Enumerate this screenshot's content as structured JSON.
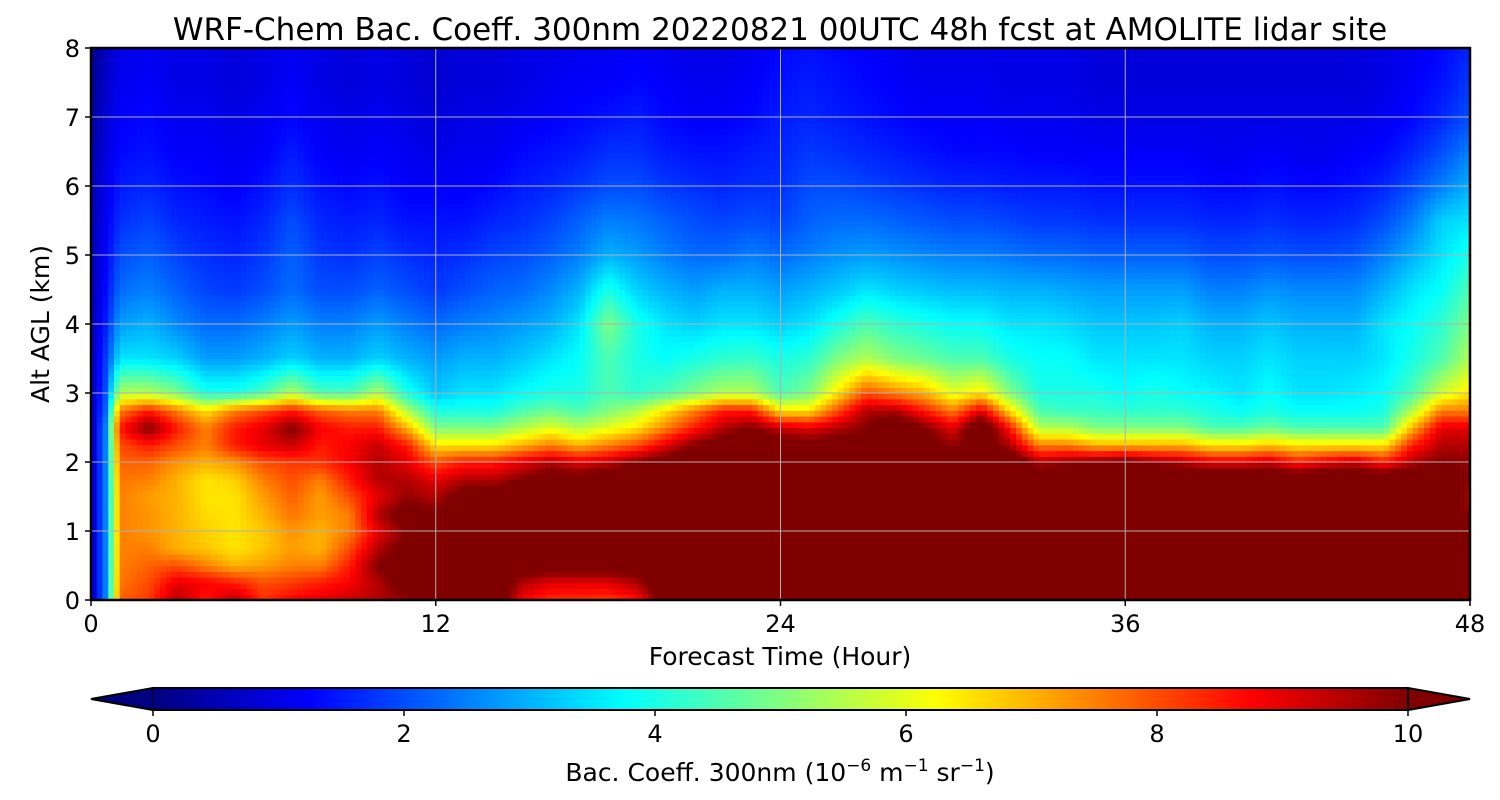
{
  "chart_data": {
    "type": "heatmap",
    "title": "WRF-Chem Bac. Coeff. 300nm  20220821 00UTC 48h fcst at AMOLITE lidar site",
    "xlabel": "Forecast Time (Hour)",
    "ylabel": "Alt AGL (km)",
    "xlim": [
      0,
      48
    ],
    "ylim": [
      0,
      8
    ],
    "x_ticks": [
      "0",
      "12",
      "24",
      "36",
      "48"
    ],
    "y_ticks": [
      "0",
      "1",
      "2",
      "3",
      "4",
      "5",
      "6",
      "7",
      "8"
    ],
    "grid": true,
    "colormap": "jet",
    "colorbar": {
      "orientation": "horizontal",
      "extend": "both",
      "range": [
        0,
        10
      ],
      "ticks": [
        "0",
        "2",
        "4",
        "6",
        "8",
        "10"
      ],
      "label": {
        "prefix": "Bac. Coeff. 300nm  (10",
        "exp1": "−6",
        "mid1": " m",
        "exp2": "−1",
        "mid2": " sr",
        "exp3": "−1",
        "suffix": ")"
      }
    },
    "x": [
      0,
      0.5,
      1,
      2,
      3,
      4,
      5,
      6,
      7,
      8,
      9,
      10,
      11,
      12,
      13,
      14,
      15,
      16,
      17,
      18,
      19,
      20,
      21,
      22,
      23,
      24,
      25,
      26,
      27,
      28,
      29,
      30,
      31,
      32,
      33,
      34,
      35,
      36,
      37,
      38,
      39,
      40,
      41,
      42,
      43,
      44,
      45,
      46,
      47,
      48
    ],
    "y": [
      0,
      0.25,
      0.5,
      0.75,
      1,
      1.25,
      1.5,
      1.75,
      2,
      2.25,
      2.5,
      2.75,
      3,
      3.5,
      4,
      4.5,
      5,
      5.5,
      6,
      6.5,
      7,
      7.5,
      8
    ],
    "z": [
      [
        0.5,
        2.5,
        7.8,
        8.2,
        9.5,
        8.5,
        9.5,
        8.3,
        8.8,
        9,
        9.3,
        9.5,
        9.8,
        10.5,
        11,
        11,
        8.8,
        8.3,
        8.3,
        8.2,
        8.6,
        10.5,
        11,
        11,
        11,
        11,
        11,
        11,
        11,
        11,
        11,
        11,
        11,
        11,
        11,
        11,
        11,
        11,
        11,
        11,
        11,
        11,
        11,
        11,
        11,
        11,
        11,
        11,
        11,
        11
      ],
      [
        0.5,
        2.5,
        7.6,
        8,
        9,
        8.8,
        8.5,
        8,
        8.2,
        8.5,
        8.8,
        9.5,
        10.5,
        10.5,
        11,
        11,
        9.5,
        9,
        9,
        9,
        9.5,
        11,
        11,
        11,
        11,
        11,
        11,
        11,
        11,
        11,
        11,
        11,
        11,
        11,
        11,
        11,
        11,
        11,
        11,
        11,
        11,
        11,
        11,
        11,
        11,
        11,
        11,
        11,
        11,
        11
      ],
      [
        0.5,
        2.5,
        7.5,
        7.8,
        8,
        7.5,
        7,
        7.2,
        7.5,
        7.5,
        8.5,
        10,
        10.5,
        10.5,
        11,
        11,
        10.5,
        10.5,
        10.5,
        10.5,
        10.5,
        11,
        11,
        11,
        11,
        11,
        11,
        11,
        11,
        11,
        11,
        11,
        11,
        11,
        11,
        11,
        11,
        11,
        11,
        11,
        11,
        11,
        11,
        11,
        11,
        11,
        11,
        11,
        11,
        11
      ],
      [
        0.5,
        2.5,
        7.5,
        7.5,
        7,
        6.8,
        6.5,
        6.8,
        7.2,
        7,
        8,
        9.5,
        10.3,
        10.5,
        11,
        11,
        11,
        11,
        11,
        11,
        11,
        11,
        11,
        11,
        11,
        11,
        11,
        11,
        11,
        11,
        11,
        11,
        11,
        11,
        11,
        11,
        11,
        11,
        11,
        11,
        11,
        11,
        11,
        11,
        11,
        11,
        11,
        11,
        11,
        11
      ],
      [
        0.5,
        2.5,
        7.5,
        7.3,
        7,
        6.7,
        6.5,
        6.8,
        7.3,
        7,
        7.5,
        9,
        10,
        10.5,
        11,
        11,
        11,
        11,
        11,
        11,
        11,
        11,
        11,
        11,
        11,
        11,
        11,
        11,
        11,
        11,
        11,
        11,
        11,
        11,
        11,
        11,
        11,
        11,
        11,
        11,
        11,
        11,
        11,
        11,
        11,
        11,
        11,
        11,
        11,
        11
      ],
      [
        0.5,
        2.5,
        7.5,
        7.3,
        7,
        6.6,
        6.5,
        7,
        7.6,
        7.2,
        7.5,
        9.5,
        10.5,
        10,
        11,
        11,
        11,
        11,
        11,
        11,
        11,
        11,
        11,
        11,
        11,
        11,
        11,
        11,
        11,
        11,
        11,
        11,
        11,
        11,
        11,
        11,
        11,
        11,
        11,
        11,
        11,
        11,
        11,
        11,
        11,
        11,
        11,
        11,
        11,
        9.8
      ],
      [
        0.5,
        2.5,
        7.5,
        7.2,
        7,
        6.5,
        6.5,
        7.2,
        7.8,
        7.2,
        8,
        9,
        9.8,
        9.5,
        10.5,
        10.5,
        11,
        11,
        11,
        11,
        11,
        11,
        11,
        11,
        11,
        11,
        11,
        11,
        11,
        11,
        11,
        11,
        11,
        11,
        11,
        11,
        11,
        11,
        11,
        11,
        11,
        11,
        11,
        11,
        11,
        11,
        11,
        11,
        11,
        9.5
      ],
      [
        0.5,
        2.5,
        7.6,
        7.5,
        7,
        6.5,
        6.7,
        7.5,
        8,
        7.5,
        8.5,
        9.5,
        9.5,
        9,
        9.5,
        9.5,
        10,
        10.5,
        10.5,
        11,
        11,
        11,
        11,
        11,
        11,
        11,
        11,
        11,
        11,
        11,
        11,
        11,
        11,
        11,
        11,
        11,
        11,
        11,
        11,
        11,
        11,
        11,
        11,
        11,
        11,
        11,
        11,
        11,
        11,
        9.8
      ],
      [
        0.5,
        2.5,
        7.8,
        7.8,
        7.3,
        7,
        7.3,
        8,
        8.2,
        8.3,
        8.8,
        9.5,
        9,
        8,
        8.5,
        8.5,
        9,
        9.5,
        9,
        9.3,
        10,
        10.5,
        11,
        11,
        11,
        11,
        11,
        11,
        10.5,
        11,
        11,
        10.5,
        11,
        11,
        9.5,
        9.8,
        10,
        10.3,
        9.8,
        9.5,
        9,
        9,
        9.3,
        8.5,
        9,
        9.3,
        8.5,
        9.5,
        10,
        9.8
      ],
      [
        0.5,
        2.5,
        8,
        8.5,
        8,
        7.5,
        8.5,
        9,
        9.3,
        8.5,
        8.8,
        9.3,
        8.5,
        6.5,
        6.5,
        6.5,
        7,
        7.5,
        7,
        7.5,
        8,
        9,
        10,
        10.5,
        11,
        10.5,
        10.3,
        10.5,
        10,
        11,
        10.5,
        9.8,
        10.5,
        9.5,
        7.5,
        7.5,
        7,
        7,
        7,
        7,
        6.5,
        6.5,
        6.8,
        6.5,
        6.5,
        6.5,
        6.5,
        8.5,
        9.5,
        9.5
      ],
      [
        0.5,
        2.5,
        8.5,
        10,
        8.5,
        7.5,
        8.5,
        9,
        10,
        8.8,
        8.5,
        8.5,
        7,
        5,
        5,
        5,
        5.5,
        6,
        5.5,
        6,
        6.5,
        7.5,
        8.5,
        9.5,
        10,
        9.3,
        9,
        9.5,
        10,
        11,
        10,
        9,
        11,
        8.5,
        5.5,
        5.5,
        5,
        5,
        5,
        5,
        4.5,
        4.5,
        4.8,
        4.5,
        4.5,
        4.5,
        4.5,
        7,
        9,
        9
      ],
      [
        0.5,
        2.2,
        7.5,
        8.5,
        7.5,
        6.5,
        7.5,
        8,
        8.5,
        7.8,
        7.5,
        7.5,
        5.5,
        4,
        4,
        4,
        4.5,
        4.8,
        4.5,
        5,
        5.5,
        6.5,
        7.5,
        8.5,
        8.5,
        6.5,
        6.5,
        8,
        9.5,
        9.5,
        8.5,
        7.5,
        9,
        6.5,
        4.5,
        4.3,
        4.3,
        4.2,
        4.2,
        4.2,
        4,
        3.8,
        4,
        3.8,
        3.8,
        3.8,
        4,
        5.5,
        7.5,
        7.5
      ],
      [
        0.5,
        2,
        5.5,
        5.5,
        5,
        4,
        4,
        4.5,
        5.5,
        4.5,
        4.5,
        5.5,
        4,
        3.2,
        3.5,
        3.5,
        3.8,
        4,
        4,
        4.5,
        4.2,
        4.5,
        5,
        5.5,
        5.5,
        4.5,
        5,
        6.5,
        8,
        7.5,
        7,
        6,
        6.5,
        5,
        4,
        4,
        4,
        3.8,
        4,
        3.8,
        3.7,
        3.5,
        3.8,
        3.5,
        3.5,
        3.6,
        3.8,
        4.5,
        5.8,
        6.5
      ],
      [
        0.5,
        1.8,
        3.5,
        3.5,
        3.3,
        2.8,
        2.8,
        3,
        3.3,
        3,
        3,
        3.3,
        3,
        2.8,
        3,
        3,
        3.2,
        3.5,
        3.8,
        4.5,
        4,
        3.8,
        4,
        4.2,
        4.3,
        4,
        4.2,
        5,
        5.5,
        5,
        4.8,
        4.5,
        4.5,
        4,
        3.8,
        3.8,
        3.5,
        3.5,
        3.5,
        3.5,
        3.3,
        3.3,
        3.5,
        3.3,
        3.3,
        3.3,
        3.5,
        4,
        4.5,
        5.5
      ],
      [
        0.5,
        1.5,
        2.8,
        3,
        2.6,
        2.3,
        2.3,
        2.5,
        2.8,
        2.5,
        2.5,
        2.8,
        2.5,
        2.3,
        2.5,
        2.6,
        2.8,
        3,
        3.5,
        5,
        4,
        3.5,
        3.3,
        3.5,
        3.5,
        3.3,
        3.5,
        4,
        4.5,
        4.2,
        4,
        3.8,
        3.8,
        3.5,
        3.5,
        3.4,
        3.2,
        3.2,
        3.2,
        3.3,
        3,
        3,
        3.2,
        3,
        3,
        3,
        3.5,
        3.8,
        4.2,
        5
      ],
      [
        0.5,
        1.3,
        2.3,
        2.5,
        2.2,
        1.9,
        1.8,
        2,
        2.3,
        2,
        2,
        2.2,
        2,
        1.8,
        2,
        2.2,
        2.3,
        2.6,
        3,
        4,
        3.3,
        3,
        2.8,
        3,
        3,
        2.8,
        3,
        3.2,
        3.5,
        3.3,
        3.2,
        3.1,
        3.1,
        3,
        3,
        2.9,
        2.8,
        2.8,
        2.8,
        2.8,
        2.5,
        2.5,
        2.7,
        2.6,
        2.6,
        2.6,
        3,
        3.5,
        3.8,
        4.5
      ],
      [
        0.5,
        1.2,
        2,
        2.2,
        1.9,
        1.7,
        1.6,
        1.8,
        2.2,
        1.8,
        1.7,
        1.9,
        1.7,
        1.6,
        1.7,
        1.9,
        2,
        2.2,
        2.5,
        3,
        2.8,
        2.5,
        2.3,
        2.3,
        2.5,
        2.3,
        2.5,
        2.7,
        2.8,
        2.7,
        2.6,
        2.5,
        2.5,
        2.4,
        2.3,
        2.3,
        2.2,
        2.2,
        2.2,
        2.2,
        2,
        2,
        2.1,
        2,
        2,
        2.1,
        2.5,
        3,
        3.5,
        4
      ],
      [
        0.5,
        1.1,
        1.7,
        1.9,
        1.6,
        1.5,
        1.4,
        1.6,
        2,
        1.6,
        1.5,
        1.6,
        1.4,
        1.4,
        1.4,
        1.6,
        1.7,
        1.9,
        2.2,
        2.5,
        2.4,
        2.2,
        2,
        1.9,
        2,
        1.9,
        2.2,
        2.3,
        2.3,
        2.2,
        2.1,
        2,
        2,
        1.9,
        1.8,
        1.8,
        1.7,
        1.7,
        1.7,
        1.7,
        1.6,
        1.6,
        1.7,
        1.6,
        1.6,
        1.7,
        2,
        2.5,
        3.3,
        3.5
      ],
      [
        0.5,
        1,
        1.5,
        1.6,
        1.4,
        1.3,
        1.2,
        1.4,
        1.7,
        1.4,
        1.3,
        1.4,
        1.2,
        1.2,
        1.2,
        1.3,
        1.5,
        1.6,
        1.8,
        2,
        2,
        1.8,
        1.7,
        1.6,
        1.7,
        1.7,
        2,
        2,
        1.9,
        1.8,
        1.7,
        1.6,
        1.6,
        1.5,
        1.5,
        1.5,
        1.4,
        1.4,
        1.4,
        1.4,
        1.3,
        1.3,
        1.4,
        1.3,
        1.3,
        1.4,
        1.6,
        2,
        2.5,
        3
      ],
      [
        0.4,
        0.9,
        1.3,
        1.4,
        1.2,
        1.2,
        1.1,
        1.2,
        1.5,
        1.2,
        1.1,
        1.2,
        1.1,
        1,
        1.1,
        1.1,
        1.3,
        1.4,
        1.5,
        1.7,
        1.7,
        1.5,
        1.4,
        1.4,
        1.5,
        1.6,
        1.8,
        1.7,
        1.6,
        1.5,
        1.4,
        1.3,
        1.3,
        1.3,
        1.2,
        1.2,
        1.2,
        1.2,
        1.2,
        1.2,
        1.1,
        1.1,
        1.2,
        1.1,
        1.1,
        1.2,
        1.3,
        1.6,
        2,
        2.5
      ],
      [
        0.3,
        0.8,
        1.2,
        1.3,
        1.1,
        1.1,
        1,
        1.1,
        1.3,
        1.1,
        1,
        1.1,
        1,
        0.9,
        1,
        1,
        1.1,
        1.2,
        1.3,
        1.4,
        1.5,
        1.3,
        1.2,
        1.2,
        1.3,
        1.5,
        1.6,
        1.5,
        1.4,
        1.3,
        1.2,
        1.2,
        1.2,
        1.1,
        1.1,
        1.1,
        1,
        1,
        1,
        1,
        1,
        1,
        1,
        1,
        1,
        1,
        1.1,
        1.3,
        1.6,
        2
      ],
      [
        0.2,
        0.7,
        1.1,
        1.2,
        1,
        1,
        0.9,
        1,
        1.2,
        1,
        0.9,
        1,
        0.9,
        0.8,
        0.9,
        0.9,
        1,
        1.1,
        1.2,
        1.2,
        1.3,
        1.2,
        1.1,
        1.1,
        1.2,
        1.4,
        1.5,
        1.4,
        1.3,
        1.2,
        1.1,
        1.1,
        1.1,
        1,
        1,
        1,
        0.9,
        0.9,
        0.9,
        0.9,
        0.9,
        0.9,
        0.9,
        0.9,
        0.9,
        0.9,
        1,
        1.2,
        1.4,
        1.8
      ],
      [
        0.1,
        0.6,
        1,
        1.1,
        1,
        1,
        0.9,
        1,
        1.1,
        1,
        0.9,
        1,
        0.9,
        0.8,
        0.9,
        0.9,
        1,
        1,
        1.1,
        1.1,
        1.2,
        1.1,
        1,
        1,
        1.1,
        1.3,
        1.4,
        1.3,
        1.2,
        1.1,
        1,
        1,
        1,
        1,
        1,
        1,
        0.9,
        0.9,
        0.9,
        0.9,
        0.9,
        0.9,
        0.9,
        0.9,
        0.9,
        0.9,
        1,
        1.1,
        1.3,
        1.6
      ]
    ]
  }
}
